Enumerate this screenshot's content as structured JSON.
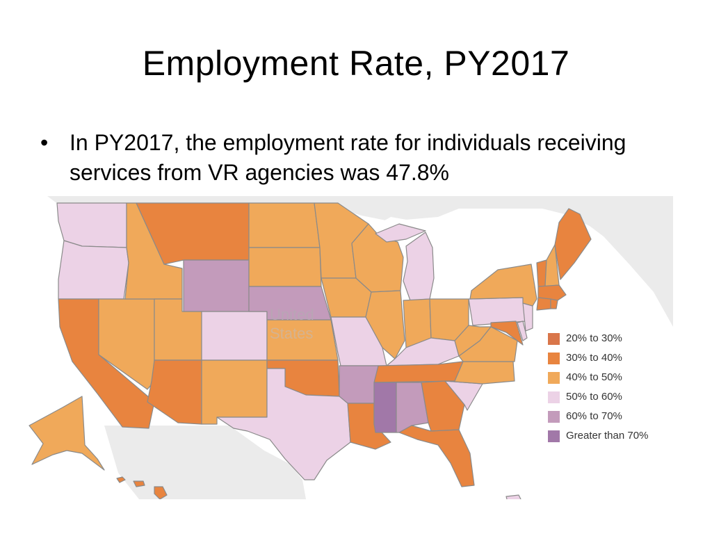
{
  "slide": {
    "title": "Employment Rate, PY2017",
    "bullet": "In PY2017, the employment rate for individuals receiving services from VR agencies was 47.8%"
  },
  "map": {
    "background_label_line1": "United",
    "background_label_line2": "States",
    "colors": {
      "20-30": "#d9764a",
      "30-40": "#e8843f",
      "40-50": "#f0a95a",
      "50-60": "#ecd2e6",
      "60-70": "#c39bbb",
      "70+": "#a178a8",
      "land": "#ebebeb",
      "water": "#ffffff"
    },
    "legend": [
      {
        "label": "20% to 30%",
        "key": "20-30"
      },
      {
        "label": "30% to 40%",
        "key": "30-40"
      },
      {
        "label": "40% to 50%",
        "key": "40-50"
      },
      {
        "label": "50% to 60%",
        "key": "50-60"
      },
      {
        "label": "60% to 70%",
        "key": "60-70"
      },
      {
        "label": "Greater than 70%",
        "key": "70+"
      }
    ],
    "states": {
      "WA": "50-60",
      "OR": "50-60",
      "CA": "30-40",
      "NV": "40-50",
      "ID": "40-50",
      "MT": "30-40",
      "WY": "60-70",
      "UT": "40-50",
      "AZ": "30-40",
      "CO": "50-60",
      "NM": "40-50",
      "ND": "40-50",
      "SD": "40-50",
      "NE": "60-70",
      "KS": "40-50",
      "OK": "30-40",
      "TX": "50-60",
      "MN": "40-50",
      "IA": "40-50",
      "MO": "50-60",
      "AR": "60-70",
      "LA": "30-40",
      "WI": "40-50",
      "IL": "40-50",
      "MI": "50-60",
      "IN": "40-50",
      "OH": "40-50",
      "KY": "50-60",
      "TN": "30-40",
      "MS": "70+",
      "AL": "60-70",
      "GA": "30-40",
      "FL": "30-40",
      "SC": "50-60",
      "NC": "40-50",
      "VA": "40-50",
      "WV": "40-50",
      "PA": "50-60",
      "NY": "40-50",
      "VT": "30-40",
      "NH": "40-50",
      "ME": "30-40",
      "MA": "30-40",
      "CT": "30-40",
      "RI": "30-40",
      "NJ": "50-60",
      "DE": "50-60",
      "MD": "30-40",
      "AK": "40-50",
      "HI": "30-40",
      "PR": "50-60"
    }
  }
}
